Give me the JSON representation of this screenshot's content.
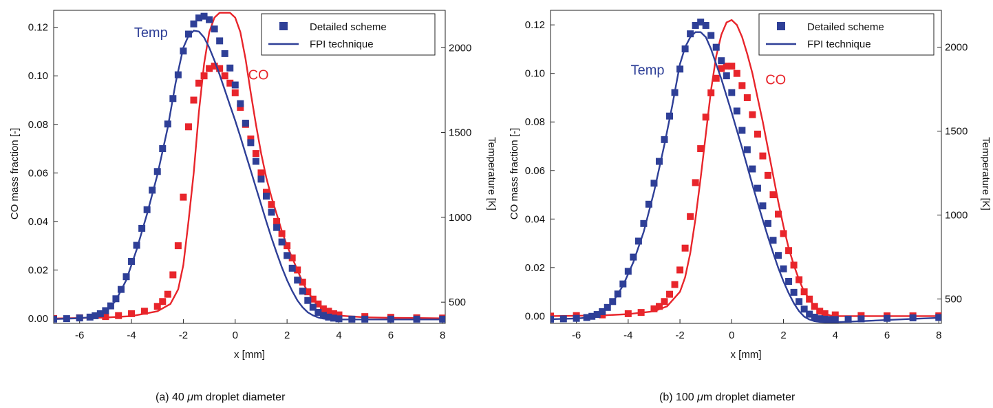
{
  "colors": {
    "temp": "#2e3f97",
    "co": "#e8252b"
  },
  "chart_data": [
    {
      "type": "line",
      "caption_prefix": "(a) 40 ",
      "caption_unit": "μ",
      "caption_suffix": "m droplet diameter",
      "xlabel": "x [mm]",
      "ylabel": "CO mass fraction [-]",
      "y2label": "Temperature [K]",
      "xlim": [
        -7,
        8.1
      ],
      "ylim": [
        -0.002,
        0.127
      ],
      "y2lim": [
        375,
        2220
      ],
      "xticks": [
        "-6",
        "-4",
        "-2",
        "0",
        "2",
        "4",
        "6",
        "8"
      ],
      "yticks": [
        "0.00",
        "0.02",
        "0.04",
        "0.06",
        "0.08",
        "0.10",
        "0.12"
      ],
      "y2ticks": [
        "500",
        "1000",
        "1500",
        "2000"
      ],
      "legend": [
        "Detailed scheme",
        "FPI technique"
      ],
      "annotations": {
        "temp": "Temp",
        "co": "CO"
      },
      "series": [
        {
          "name": "CO",
          "axis": "left",
          "kind": "markers",
          "x": [
            -7,
            -6,
            -5,
            -4.5,
            -4,
            -3.5,
            -3,
            -2.8,
            -2.6,
            -2.4,
            -2.2,
            -2.0,
            -1.8,
            -1.6,
            -1.4,
            -1.2,
            -1.0,
            -0.8,
            -0.6,
            -0.4,
            -0.2,
            0.0,
            0.2,
            0.4,
            0.6,
            0.8,
            1.0,
            1.2,
            1.4,
            1.6,
            1.8,
            2.0,
            2.2,
            2.4,
            2.6,
            2.8,
            3.0,
            3.2,
            3.4,
            3.6,
            3.8,
            4.0,
            5.0,
            6.0,
            7.0,
            8.0
          ],
          "y": [
            0.0,
            0.0003,
            0.0008,
            0.0012,
            0.002,
            0.003,
            0.005,
            0.007,
            0.01,
            0.018,
            0.03,
            0.05,
            0.079,
            0.09,
            0.097,
            0.1,
            0.103,
            0.104,
            0.103,
            0.1,
            0.097,
            0.093,
            0.087,
            0.08,
            0.074,
            0.068,
            0.06,
            0.052,
            0.047,
            0.04,
            0.035,
            0.03,
            0.025,
            0.02,
            0.015,
            0.011,
            0.008,
            0.006,
            0.004,
            0.003,
            0.002,
            0.0015,
            0.0008,
            0.0005,
            0.0003,
            0.0002
          ]
        },
        {
          "name": "CO",
          "axis": "left",
          "kind": "line",
          "x": [
            -7,
            -5,
            -4,
            -3,
            -2.5,
            -2.2,
            -2.0,
            -1.8,
            -1.6,
            -1.4,
            -1.2,
            -1.0,
            -0.8,
            -0.6,
            -0.4,
            -0.2,
            0.0,
            0.2,
            0.4,
            0.6,
            0.8,
            1.0,
            1.2,
            1.4,
            1.6,
            1.8,
            2.0,
            2.2,
            2.4,
            2.6,
            2.8,
            3.0,
            3.2,
            3.4,
            3.6,
            3.8,
            4.0,
            5,
            6,
            7,
            8
          ],
          "y": [
            0.0,
            0.0004,
            0.001,
            0.003,
            0.006,
            0.012,
            0.022,
            0.04,
            0.06,
            0.085,
            0.105,
            0.118,
            0.124,
            0.126,
            0.126,
            0.126,
            0.124,
            0.118,
            0.107,
            0.093,
            0.08,
            0.068,
            0.058,
            0.05,
            0.043,
            0.036,
            0.03,
            0.025,
            0.02,
            0.015,
            0.011,
            0.008,
            0.006,
            0.004,
            0.003,
            0.002,
            0.0012,
            0.0005,
            0.0003,
            0.0002,
            0.0001
          ]
        },
        {
          "name": "Temp",
          "axis": "right",
          "kind": "markers",
          "x": [
            -7,
            -6.5,
            -6,
            -5.6,
            -5.4,
            -5.2,
            -5.0,
            -4.8,
            -4.6,
            -4.4,
            -4.2,
            -4.0,
            -3.8,
            -3.6,
            -3.4,
            -3.2,
            -3.0,
            -2.8,
            -2.6,
            -2.4,
            -2.2,
            -2.0,
            -1.8,
            -1.6,
            -1.4,
            -1.2,
            -1.0,
            -0.8,
            -0.6,
            -0.4,
            -0.2,
            0.0,
            0.2,
            0.4,
            0.6,
            0.8,
            1.0,
            1.2,
            1.4,
            1.6,
            1.8,
            2.0,
            2.2,
            2.4,
            2.6,
            2.8,
            3.0,
            3.2,
            3.4,
            3.6,
            3.8,
            4.0,
            4.5,
            5,
            6,
            7,
            8
          ],
          "y": [
            400,
            403,
            407,
            412,
            420,
            432,
            450,
            478,
            520,
            575,
            650,
            740,
            835,
            935,
            1045,
            1160,
            1270,
            1405,
            1550,
            1700,
            1840,
            1980,
            2080,
            2140,
            2175,
            2185,
            2165,
            2110,
            2040,
            1965,
            1880,
            1780,
            1670,
            1555,
            1440,
            1330,
            1225,
            1125,
            1030,
            940,
            855,
            775,
            700,
            630,
            565,
            510,
            470,
            440,
            422,
            412,
            406,
            402,
            400,
            400,
            400,
            400,
            400
          ]
        },
        {
          "name": "Temp",
          "axis": "right",
          "kind": "line",
          "x": [
            -7,
            -6,
            -5.5,
            -5.0,
            -4.6,
            -4.2,
            -3.8,
            -3.4,
            -3.0,
            -2.6,
            -2.3,
            -2.0,
            -1.8,
            -1.6,
            -1.4,
            -1.2,
            -1.0,
            -0.8,
            -0.6,
            -0.4,
            -0.2,
            0.0,
            0.2,
            0.4,
            0.6,
            0.8,
            1.0,
            1.2,
            1.4,
            1.6,
            1.8,
            2.0,
            2.2,
            2.4,
            2.6,
            2.8,
            3.0,
            3.2,
            3.4,
            3.6,
            3.8,
            4.0,
            5,
            6,
            7,
            8
          ],
          "y": [
            400,
            405,
            413,
            440,
            510,
            630,
            810,
            1020,
            1250,
            1530,
            1790,
            2000,
            2070,
            2100,
            2095,
            2060,
            2000,
            1925,
            1840,
            1750,
            1660,
            1570,
            1475,
            1375,
            1275,
            1175,
            1075,
            975,
            880,
            790,
            705,
            630,
            565,
            510,
            470,
            440,
            422,
            410,
            403,
            400,
            398,
            398,
            398,
            398,
            398,
            398
          ]
        }
      ]
    },
    {
      "type": "line",
      "caption_prefix": "(b) 100 ",
      "caption_unit": "μ",
      "caption_suffix": "m droplet diameter",
      "xlabel": "x [mm]",
      "ylabel": "CO mass fraction [-]",
      "y2label": "Temperature [K]",
      "xlim": [
        -7,
        8.1
      ],
      "ylim": [
        -0.003,
        0.126
      ],
      "y2lim": [
        355,
        2220
      ],
      "xticks": [
        "-6",
        "-4",
        "-2",
        "0",
        "2",
        "4",
        "6",
        "8"
      ],
      "yticks": [
        "0.00",
        "0.02",
        "0.04",
        "0.06",
        "0.08",
        "0.10",
        "0.12"
      ],
      "y2ticks": [
        "500",
        "1000",
        "1500",
        "2000"
      ],
      "legend": [
        "Detailed scheme",
        "FPI technique"
      ],
      "annotations": {
        "temp": "Temp",
        "co": "CO"
      },
      "series": [
        {
          "name": "CO",
          "axis": "left",
          "kind": "markers",
          "x": [
            -7,
            -6,
            -5,
            -4,
            -3.5,
            -3.0,
            -2.8,
            -2.6,
            -2.4,
            -2.2,
            -2.0,
            -1.8,
            -1.6,
            -1.4,
            -1.2,
            -1.0,
            -0.8,
            -0.6,
            -0.4,
            -0.2,
            0.0,
            0.2,
            0.4,
            0.6,
            0.8,
            1.0,
            1.2,
            1.4,
            1.6,
            1.8,
            2.0,
            2.2,
            2.4,
            2.6,
            2.8,
            3.0,
            3.2,
            3.4,
            3.6,
            4.0,
            5,
            6,
            7,
            8
          ],
          "y": [
            0.0,
            0.0002,
            0.0005,
            0.001,
            0.0015,
            0.003,
            0.004,
            0.006,
            0.009,
            0.013,
            0.019,
            0.028,
            0.041,
            0.055,
            0.069,
            0.082,
            0.092,
            0.098,
            0.102,
            0.103,
            0.103,
            0.1,
            0.095,
            0.09,
            0.083,
            0.075,
            0.066,
            0.058,
            0.05,
            0.042,
            0.034,
            0.027,
            0.021,
            0.015,
            0.01,
            0.007,
            0.004,
            0.002,
            0.001,
            0.0005,
            0.0002,
            0.0001,
            0.0001,
            0.0001
          ]
        },
        {
          "name": "CO",
          "axis": "left",
          "kind": "line",
          "x": [
            -7,
            -5,
            -4,
            -3,
            -2.5,
            -2.0,
            -1.8,
            -1.6,
            -1.4,
            -1.2,
            -1.0,
            -0.8,
            -0.6,
            -0.4,
            -0.2,
            0.0,
            0.2,
            0.4,
            0.6,
            0.8,
            1.0,
            1.2,
            1.4,
            1.6,
            1.8,
            2.0,
            2.2,
            2.4,
            2.6,
            2.8,
            3.0,
            3.2,
            3.4,
            3.6,
            3.8,
            4.0,
            5,
            6,
            7,
            8
          ],
          "y": [
            0.0,
            0.0003,
            0.0008,
            0.002,
            0.004,
            0.01,
            0.016,
            0.026,
            0.04,
            0.057,
            0.075,
            0.093,
            0.107,
            0.116,
            0.121,
            0.122,
            0.12,
            0.115,
            0.108,
            0.1,
            0.09,
            0.08,
            0.069,
            0.058,
            0.047,
            0.037,
            0.028,
            0.021,
            0.015,
            0.01,
            0.007,
            0.004,
            0.002,
            0.001,
            0.0003,
            0.0,
            0.0,
            0.0,
            0.0,
            0.0
          ]
        },
        {
          "name": "Temp",
          "axis": "right",
          "kind": "markers",
          "x": [
            -7,
            -6.5,
            -6,
            -5.6,
            -5.4,
            -5.2,
            -5.0,
            -4.8,
            -4.6,
            -4.4,
            -4.2,
            -4.0,
            -3.8,
            -3.6,
            -3.4,
            -3.2,
            -3.0,
            -2.8,
            -2.6,
            -2.4,
            -2.2,
            -2.0,
            -1.8,
            -1.6,
            -1.4,
            -1.2,
            -1.0,
            -0.8,
            -0.6,
            -0.4,
            -0.2,
            0.0,
            0.2,
            0.4,
            0.6,
            0.8,
            1.0,
            1.2,
            1.4,
            1.6,
            1.8,
            2.0,
            2.2,
            2.4,
            2.6,
            2.8,
            3.0,
            3.2,
            3.4,
            3.6,
            3.8,
            4.0,
            4.5,
            5,
            6,
            7,
            8
          ],
          "y": [
            380,
            382,
            385,
            390,
            397,
            408,
            425,
            450,
            485,
            530,
            590,
            665,
            750,
            845,
            950,
            1065,
            1190,
            1320,
            1450,
            1590,
            1730,
            1870,
            1990,
            2080,
            2130,
            2150,
            2130,
            2070,
            2000,
            1920,
            1830,
            1730,
            1620,
            1505,
            1390,
            1275,
            1160,
            1055,
            950,
            850,
            760,
            680,
            605,
            540,
            485,
            440,
            410,
            392,
            383,
            380,
            378,
            378,
            380,
            382,
            385,
            388,
            390
          ]
        },
        {
          "name": "Temp",
          "axis": "right",
          "kind": "line",
          "x": [
            -7,
            -6,
            -5.5,
            -5.0,
            -4.6,
            -4.2,
            -3.8,
            -3.4,
            -3.0,
            -2.6,
            -2.3,
            -2.0,
            -1.8,
            -1.6,
            -1.4,
            -1.2,
            -1.0,
            -0.8,
            -0.6,
            -0.4,
            -0.2,
            0.0,
            0.2,
            0.4,
            0.6,
            0.8,
            1.0,
            1.2,
            1.4,
            1.6,
            1.8,
            2.0,
            2.2,
            2.4,
            2.6,
            2.8,
            3.0,
            3.2,
            3.4,
            3.6,
            3.8,
            4.0,
            5,
            6,
            7,
            8
          ],
          "y": [
            380,
            384,
            390,
            420,
            480,
            580,
            720,
            900,
            1140,
            1420,
            1650,
            1900,
            2000,
            2060,
            2090,
            2090,
            2060,
            1990,
            1900,
            1810,
            1710,
            1610,
            1505,
            1400,
            1290,
            1180,
            1075,
            970,
            870,
            775,
            685,
            605,
            535,
            475,
            428,
            395,
            378,
            368,
            364,
            362,
            362,
            362,
            368,
            375,
            382,
            388
          ]
        }
      ]
    }
  ]
}
